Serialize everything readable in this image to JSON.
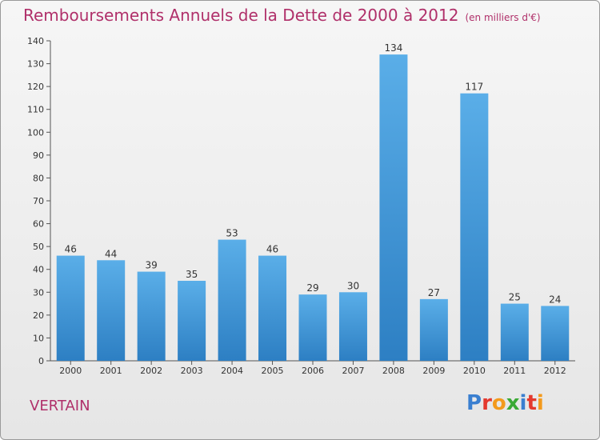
{
  "header": {
    "title": "Remboursements Annuels de la Dette de 2000 à 2012",
    "subtitle": "(en milliers d'€)"
  },
  "footer": {
    "city": "VERTAIN",
    "logo": {
      "text": "Proxiti",
      "colors": [
        "#3a7fd0",
        "#e4392e",
        "#f39a1c",
        "#3aaa35",
        "#3a7fd0",
        "#e4392e",
        "#f39a1c"
      ]
    }
  },
  "colors": {
    "bar_top": "#5aaee8",
    "bar_bottom": "#2d7fc3",
    "title": "#b0306a"
  },
  "chart_data": {
    "type": "bar",
    "title": "Remboursements Annuels de la Dette de 2000 à 2012",
    "subtitle": "(en milliers d'€)",
    "categories": [
      "2000",
      "2001",
      "2002",
      "2003",
      "2004",
      "2005",
      "2006",
      "2007",
      "2008",
      "2009",
      "2010",
      "2011",
      "2012"
    ],
    "values": [
      46,
      44,
      39,
      35,
      53,
      46,
      29,
      30,
      134,
      27,
      117,
      25,
      24
    ],
    "ylim": [
      0,
      140
    ],
    "yticks": [
      0,
      10,
      20,
      30,
      40,
      50,
      60,
      70,
      80,
      90,
      100,
      110,
      120,
      130,
      140
    ],
    "grid": false,
    "data_labels": true
  }
}
